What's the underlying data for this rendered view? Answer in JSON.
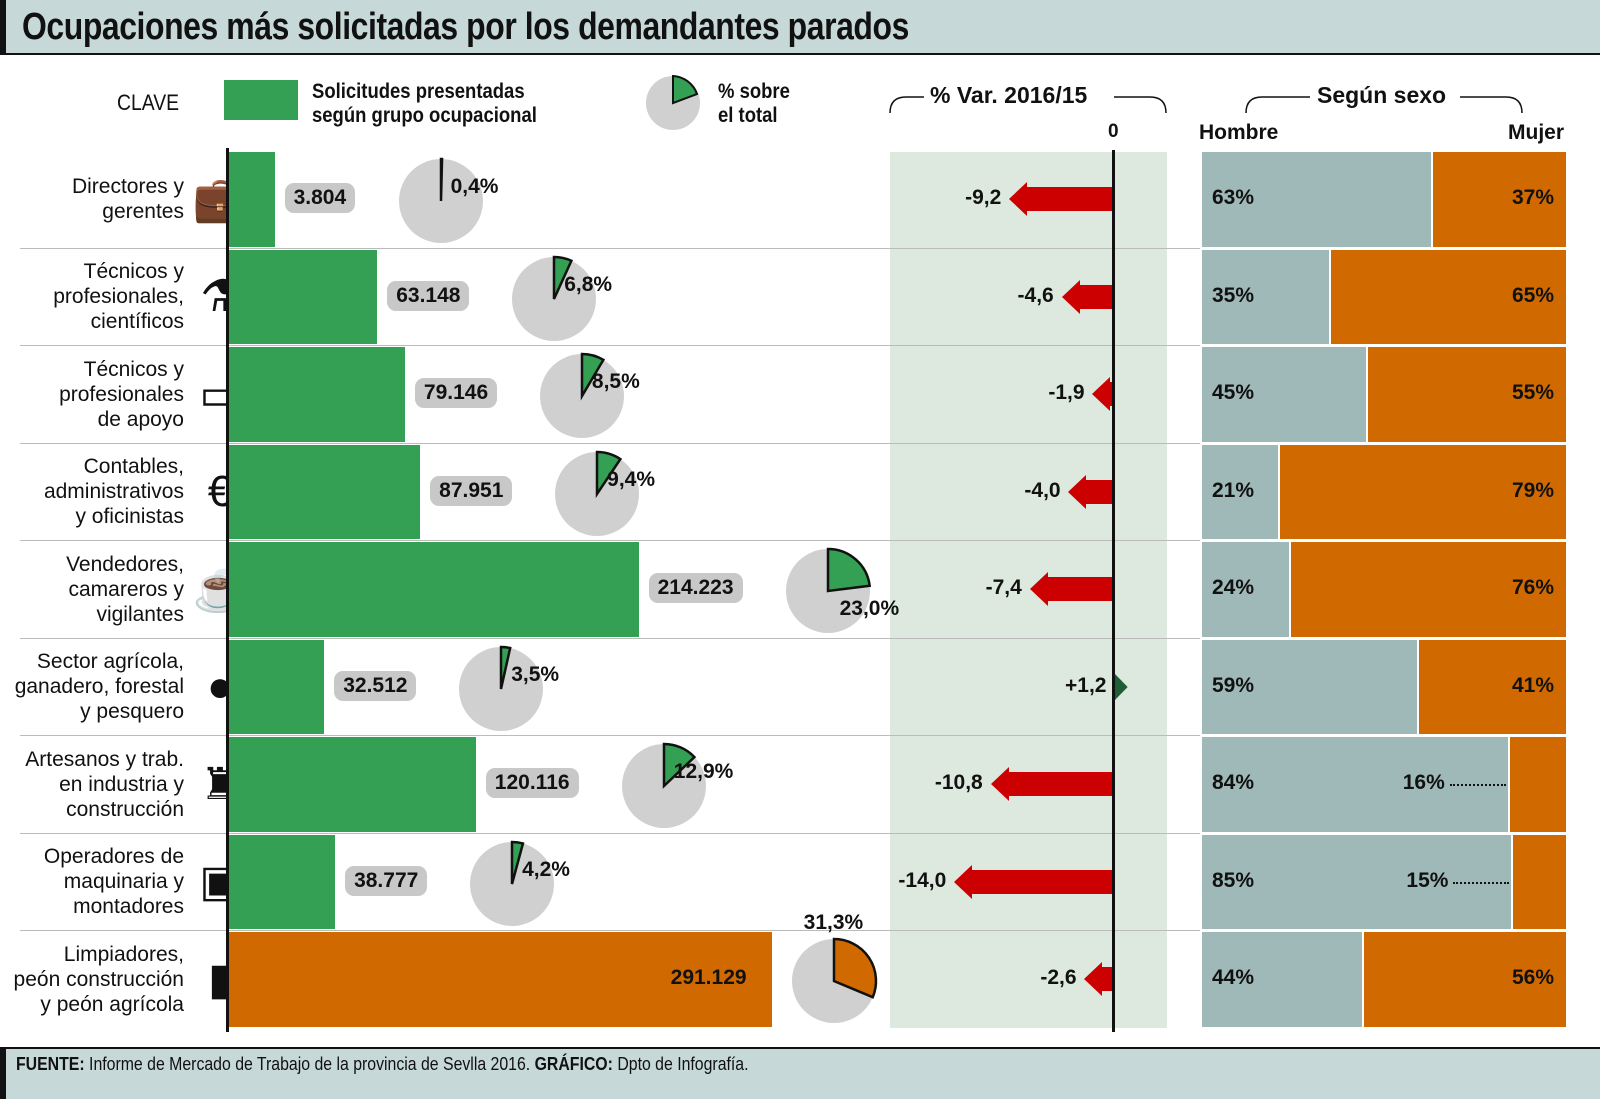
{
  "title": "Ocupaciones más solicitadas por los demandantes parados",
  "legend": {
    "key_label": "CLAVE",
    "bar_label_line1": "Solicitudes presentadas",
    "bar_label_line2": "según grupo ocupacional",
    "pie_label_line1": "% sobre",
    "pie_label_line2": "el total"
  },
  "var_header": "% Var. 2016/15",
  "var_zero_label": "0",
  "sex_header": "Según sexo",
  "sex_left_label": "Hombre",
  "sex_right_label": "Mujer",
  "footer": {
    "source_key": "FUENTE:",
    "source_text": " Informe de Mercado de Trabajo de la provincia de Sevlla 2016. ",
    "graphic_key": "GRÁFICO:",
    "graphic_text": " Dpto de Infografía."
  },
  "colors": {
    "bar_green": "#34a053",
    "bar_orange": "#d06a00",
    "pie_gray": "#d0d0d0",
    "var_panel": "#dde9de",
    "var_negative": "#cc0000",
    "var_positive": "#1f5e35",
    "hombre": "#9fb8b8",
    "mujer": "#d06a00",
    "header_bg": "#c6d9d8"
  },
  "chart_data": {
    "type": "bar",
    "title": "Ocupaciones más solicitadas por los demandantes parados",
    "categories": [
      "Directores y gerentes",
      "Técnicos y profesionales, científicos",
      "Técnicos y profesionales de apoyo",
      "Contables, administrativos y oficinistas",
      "Vendedores, camareros y vigilantes",
      "Sector agrícola, ganadero, forestal y pesquero",
      "Artesanos y trab. en industria y construcción",
      "Operadores de maquinaria y montadores",
      "Limpiadores, peón construcción y peón agrícola"
    ],
    "series": [
      {
        "name": "Solicitudes presentadas según grupo ocupacional",
        "values": [
          3804,
          63148,
          79146,
          87951,
          214223,
          32512,
          120116,
          38777,
          291129
        ]
      },
      {
        "name": "% sobre el total",
        "values": [
          0.4,
          6.8,
          8.5,
          9.4,
          23.0,
          3.5,
          12.9,
          4.2,
          31.3
        ]
      },
      {
        "name": "% Var. 2016/15",
        "values": [
          -9.2,
          -4.6,
          -1.9,
          -4.0,
          -7.4,
          1.2,
          -10.8,
          -14.0,
          -2.6
        ]
      },
      {
        "name": "Hombre",
        "values": [
          63,
          35,
          45,
          21,
          24,
          59,
          84,
          85,
          44
        ]
      },
      {
        "name": "Mujer",
        "values": [
          37,
          65,
          55,
          79,
          76,
          41,
          16,
          15,
          56
        ]
      }
    ],
    "rows": [
      {
        "label": [
          "Directores y",
          "gerentes"
        ],
        "icon": "briefcase-icon",
        "glyph": "💼",
        "value_label": "3.804",
        "pct_label": "0,4%",
        "var_label": "-9,2",
        "hombre_label": "63%",
        "mujer_label": "37%",
        "highlight": false
      },
      {
        "label": [
          "Técnicos y",
          "profesionales,",
          "científicos"
        ],
        "icon": "flask-icon",
        "glyph": "⚗",
        "value_label": "63.148",
        "pct_label": "6,8%",
        "var_label": "-4,6",
        "hombre_label": "35%",
        "mujer_label": "65%",
        "highlight": false
      },
      {
        "label": [
          "Técnicos y",
          "profesionales",
          "de apoyo"
        ],
        "icon": "computer-icon",
        "glyph": "▭",
        "value_label": "79.146",
        "pct_label": "8,5%",
        "var_label": "-1,9",
        "hombre_label": "45%",
        "mujer_label": "55%",
        "highlight": false
      },
      {
        "label": [
          "Contables,",
          "administrativos",
          "y oficinistas"
        ],
        "icon": "euro-coins-icon",
        "glyph": "€",
        "value_label": "87.951",
        "pct_label": "9,4%",
        "var_label": "-4,0",
        "hombre_label": "21%",
        "mujer_label": "79%",
        "highlight": false
      },
      {
        "label": [
          "Vendedores,",
          "camareros y",
          "vigilantes"
        ],
        "icon": "beer-mug-icon",
        "glyph": "☕",
        "value_label": "214.223",
        "pct_label": "23,0%",
        "var_label": "-7,4",
        "hombre_label": "24%",
        "mujer_label": "76%",
        "highlight": false
      },
      {
        "label": [
          "Sector agrícola,",
          "ganadero, forestal",
          "y pesquero"
        ],
        "icon": "pepper-icon",
        "glyph": "●",
        "value_label": "32.512",
        "pct_label": "3,5%",
        "var_label": "+1,2",
        "hombre_label": "59%",
        "mujer_label": "41%",
        "highlight": false
      },
      {
        "label": [
          "Artesanos y trab.",
          "en industria y",
          "construcción"
        ],
        "icon": "factory-icon",
        "glyph": "♜",
        "value_label": "120.116",
        "pct_label": "12,9%",
        "var_label": "-10,8",
        "hombre_label": "84%",
        "mujer_label": "16%",
        "highlight": false
      },
      {
        "label": [
          "Operadores de",
          "maquinaria y",
          "montadores"
        ],
        "icon": "box-icon",
        "glyph": "▣",
        "value_label": "38.777",
        "pct_label": "4,2%",
        "var_label": "-14,0",
        "hombre_label": "85%",
        "mujer_label": "15%",
        "highlight": false
      },
      {
        "label": [
          "Limpiadores,",
          "peón construcción",
          "y peón agrícola"
        ],
        "icon": "cleaning-spray-icon",
        "glyph": "▮",
        "value_label": "291.129",
        "pct_label": "31,3%",
        "var_label": "-2,6",
        "hombre_label": "44%",
        "mujer_label": "56%",
        "highlight": true
      }
    ]
  }
}
